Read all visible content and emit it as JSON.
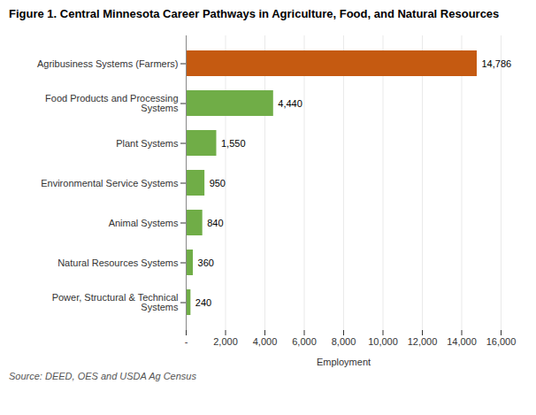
{
  "chart_data": {
    "type": "bar",
    "orientation": "horizontal",
    "title": "Figure 1. Central Minnesota Career Pathways in Agriculture, Food, and Natural Resources",
    "categories": [
      "Agribusiness Systems (Farmers)",
      "Food Products and Processing\nSystems",
      "Plant Systems",
      "Environmental Service Systems",
      "Animal Systems",
      "Natural Resources Systems",
      "Power, Structural & Technical\nSystems"
    ],
    "values": [
      14786,
      4440,
      1550,
      950,
      840,
      360,
      240
    ],
    "value_labels": [
      "14,786",
      "4,440",
      "1,550",
      "950",
      "840",
      "360",
      "240"
    ],
    "data_labels": true,
    "colors": [
      "#c55a11",
      "#70ad47",
      "#70ad47",
      "#70ad47",
      "#70ad47",
      "#70ad47",
      "#70ad47"
    ],
    "xlabel": "Employment",
    "xlim": [
      0,
      16000
    ],
    "xticks": [
      {
        "value": 0,
        "label": "-"
      },
      {
        "value": 2000,
        "label": "2,000"
      },
      {
        "value": 4000,
        "label": "4,000"
      },
      {
        "value": 6000,
        "label": "6,000"
      },
      {
        "value": 8000,
        "label": "8,000"
      },
      {
        "value": 10000,
        "label": "10,000"
      },
      {
        "value": 12000,
        "label": "12,000"
      },
      {
        "value": 14000,
        "label": "14,000"
      },
      {
        "value": 16000,
        "label": "16,000"
      }
    ],
    "grid": true,
    "annotations": [
      "Source: DEED, OES and USDA Ag Census"
    ]
  }
}
